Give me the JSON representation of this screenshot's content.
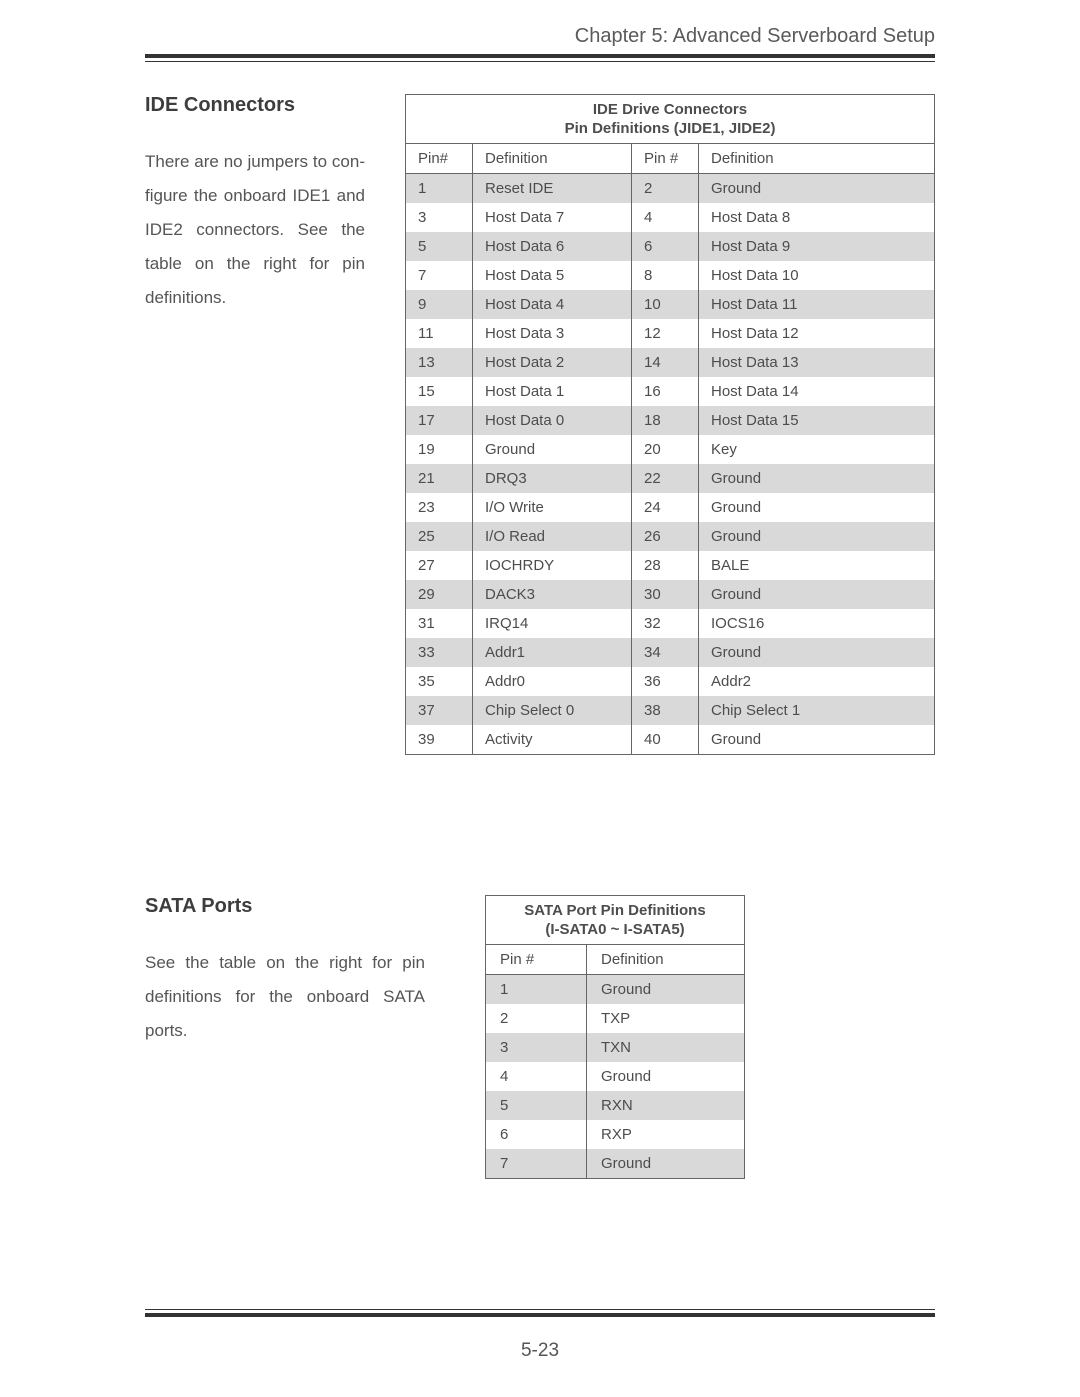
{
  "chapter_header": "Chapter 5: Advanced Serverboard Setup",
  "page_number": "5-23",
  "ide": {
    "heading": "IDE Connectors",
    "body": "There are no jumpers to con­figure the onboard IDE1 and IDE2 connectors.  See the table on the right for pin defini­tions.",
    "table_title": "IDE Drive Connectors",
    "table_subtitle": "Pin Definitions (JIDE1, JIDE2)",
    "col_headers": {
      "pin_a": "Pin#",
      "def_a": "Definition",
      "pin_b": "Pin #",
      "def_b": "Definition"
    },
    "rows": [
      {
        "a": "1",
        "ad": "Reset IDE",
        "b": "2",
        "bd": "Ground"
      },
      {
        "a": "3",
        "ad": "Host Data 7",
        "b": "4",
        "bd": "Host Data 8"
      },
      {
        "a": "5",
        "ad": "Host Data 6",
        "b": "6",
        "bd": "Host Data 9"
      },
      {
        "a": "7",
        "ad": "Host Data 5",
        "b": "8",
        "bd": "Host Data 10"
      },
      {
        "a": "9",
        "ad": "Host Data 4",
        "b": "10",
        "bd": "Host Data 11"
      },
      {
        "a": "11",
        "ad": "Host Data 3",
        "b": "12",
        "bd": "Host Data 12"
      },
      {
        "a": "13",
        "ad": "Host Data 2",
        "b": "14",
        "bd": "Host Data 13"
      },
      {
        "a": "15",
        "ad": "Host Data 1",
        "b": "16",
        "bd": "Host Data 14"
      },
      {
        "a": "17",
        "ad": "Host Data 0",
        "b": "18",
        "bd": "Host Data 15"
      },
      {
        "a": "19",
        "ad": "Ground",
        "b": "20",
        "bd": "Key"
      },
      {
        "a": "21",
        "ad": "DRQ3",
        "b": "22",
        "bd": "Ground"
      },
      {
        "a": "23",
        "ad": "I/O Write",
        "b": "24",
        "bd": "Ground"
      },
      {
        "a": "25",
        "ad": "I/O Read",
        "b": "26",
        "bd": "Ground"
      },
      {
        "a": "27",
        "ad": "IOCHRDY",
        "b": "28",
        "bd": "BALE"
      },
      {
        "a": "29",
        "ad": "DACK3",
        "b": "30",
        "bd": "Ground"
      },
      {
        "a": "31",
        "ad": "IRQ14",
        "b": "32",
        "bd": "IOCS16"
      },
      {
        "a": "33",
        "ad": "Addr1",
        "b": "34",
        "bd": "Ground"
      },
      {
        "a": "35",
        "ad": "Addr0",
        "b": "36",
        "bd": "Addr2"
      },
      {
        "a": "37",
        "ad": "Chip Select 0",
        "b": "38",
        "bd": "Chip Select 1"
      },
      {
        "a": "39",
        "ad": "Activity",
        "b": "40",
        "bd": "Ground"
      }
    ]
  },
  "sata": {
    "heading": "SATA Ports",
    "body": "See the table on the right for pin definitions for the onboard SATA ports.",
    "table_title": "SATA Port Pin Definitions",
    "table_subtitle": "(I-SATA0 ~ I-SATA5)",
    "col_headers": {
      "pin": "Pin #",
      "def": "Definition"
    },
    "rows": [
      {
        "p": "1",
        "d": "Ground"
      },
      {
        "p": "2",
        "d": "TXP"
      },
      {
        "p": "3",
        "d": "TXN"
      },
      {
        "p": "4",
        "d": "Ground"
      },
      {
        "p": "5",
        "d": "RXN"
      },
      {
        "p": "6",
        "d": "RXP"
      },
      {
        "p": "7",
        "d": "Ground"
      }
    ]
  },
  "style": {
    "shade_color": "#d9d9d9",
    "border_color": "#666666",
    "text_color": "#4a4a4a"
  }
}
